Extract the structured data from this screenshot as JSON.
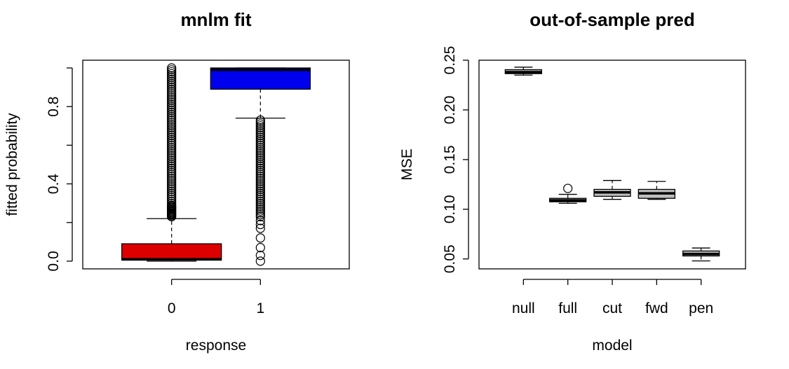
{
  "chart_data": [
    {
      "type": "box",
      "title": "mnlm fit",
      "xlabel": "response",
      "ylabel": "fitted probability",
      "ylim": [
        -0.04,
        1.04
      ],
      "yticks": [
        0.0,
        0.4,
        0.8
      ],
      "ytick_labels": [
        "0.0",
        "0.4",
        "0.8"
      ],
      "extra_yticks": [
        0.2,
        0.6,
        1.0
      ],
      "grid": false,
      "categories": [
        "0",
        "1"
      ],
      "boxes": [
        {
          "category": "0",
          "color": "#dd0000",
          "whisker_low": 0.0,
          "q1": 0.005,
          "median": 0.01,
          "q3": 0.09,
          "whisker_high": 0.22,
          "outliers": [
            0.23,
            0.235,
            0.24,
            0.245,
            0.25,
            0.255,
            0.26,
            0.265,
            0.27,
            0.275,
            0.28,
            0.285,
            0.29,
            0.3,
            0.31,
            0.32,
            0.33,
            0.34,
            0.35,
            0.36,
            0.37,
            0.38,
            0.39,
            0.4,
            0.41,
            0.42,
            0.43,
            0.44,
            0.45,
            0.46,
            0.47,
            0.48,
            0.49,
            0.5,
            0.51,
            0.52,
            0.53,
            0.54,
            0.55,
            0.56,
            0.57,
            0.58,
            0.59,
            0.6,
            0.61,
            0.62,
            0.63,
            0.64,
            0.65,
            0.66,
            0.67,
            0.68,
            0.69,
            0.7,
            0.71,
            0.72,
            0.73,
            0.74,
            0.75,
            0.76,
            0.77,
            0.78,
            0.79,
            0.8,
            0.81,
            0.82,
            0.83,
            0.84,
            0.85,
            0.86,
            0.87,
            0.88,
            0.89,
            0.9,
            0.91,
            0.92,
            0.93,
            0.94,
            0.95,
            0.96,
            0.97,
            0.98,
            0.99,
            1.0
          ]
        },
        {
          "category": "1",
          "color": "#0000ee",
          "whisker_low": 0.74,
          "q1": 0.89,
          "median": 0.99,
          "q3": 1.0,
          "whisker_high": 1.0,
          "outliers": [
            0.0,
            0.03,
            0.07,
            0.12,
            0.17,
            0.19,
            0.21,
            0.23,
            0.24,
            0.25,
            0.26,
            0.27,
            0.28,
            0.29,
            0.3,
            0.31,
            0.32,
            0.33,
            0.34,
            0.35,
            0.36,
            0.37,
            0.38,
            0.39,
            0.4,
            0.41,
            0.42,
            0.43,
            0.44,
            0.45,
            0.46,
            0.47,
            0.48,
            0.49,
            0.5,
            0.51,
            0.52,
            0.53,
            0.54,
            0.55,
            0.56,
            0.57,
            0.58,
            0.59,
            0.6,
            0.61,
            0.62,
            0.63,
            0.64,
            0.65,
            0.66,
            0.67,
            0.68,
            0.69,
            0.7,
            0.71,
            0.72,
            0.73
          ]
        }
      ]
    },
    {
      "type": "box",
      "title": "out-of-sample pred",
      "xlabel": "model",
      "ylabel": "MSE",
      "ylim": [
        0.04,
        0.25
      ],
      "yticks": [
        0.05,
        0.1,
        0.15,
        0.2,
        0.25
      ],
      "ytick_labels": [
        "0.05",
        "0.10",
        "0.15",
        "0.20",
        "0.25"
      ],
      "grid": false,
      "categories": [
        "null",
        "full",
        "cut",
        "fwd",
        "pen"
      ],
      "boxes": [
        {
          "category": "null",
          "color": "#bebebe",
          "whisker_low": 0.235,
          "q1": 0.2365,
          "median": 0.238,
          "q3": 0.2405,
          "whisker_high": 0.243,
          "outliers": []
        },
        {
          "category": "full",
          "color": "#bebebe",
          "whisker_low": 0.106,
          "q1": 0.1075,
          "median": 0.109,
          "q3": 0.111,
          "whisker_high": 0.115,
          "outliers": [
            0.121
          ]
        },
        {
          "category": "cut",
          "color": "#bebebe",
          "whisker_low": 0.11,
          "q1": 0.113,
          "median": 0.117,
          "q3": 0.12,
          "whisker_high": 0.129,
          "outliers": []
        },
        {
          "category": "fwd",
          "color": "#bebebe",
          "whisker_low": 0.11,
          "q1": 0.111,
          "median": 0.116,
          "q3": 0.12,
          "whisker_high": 0.128,
          "outliers": []
        },
        {
          "category": "pen",
          "color": "#bebebe",
          "whisker_low": 0.048,
          "q1": 0.053,
          "median": 0.055,
          "q3": 0.058,
          "whisker_high": 0.061,
          "outliers": []
        }
      ]
    }
  ]
}
